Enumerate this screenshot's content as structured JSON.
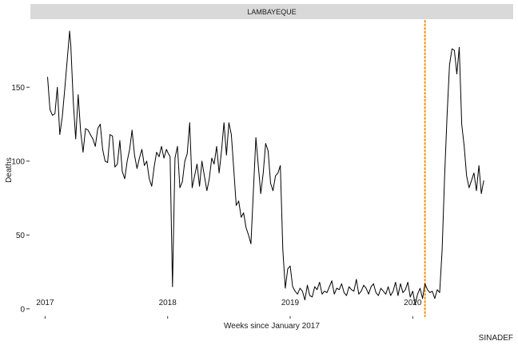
{
  "chart_data": {
    "type": "line",
    "facet_title": "LAMBAYEQUE",
    "xlabel": "Weeks since January 2017",
    "ylabel": "Deaths",
    "caption": "SINADEF",
    "x_ticks": [
      {
        "label": "2017",
        "year": 2017.0
      },
      {
        "label": "2018",
        "year": 2018.0
      },
      {
        "label": "2019",
        "year": 2019.0
      },
      {
        "label": "2020",
        "year": 2020.0
      }
    ],
    "y_ticks": [
      0,
      50,
      100,
      150
    ],
    "ylim": [
      -5,
      195
    ],
    "xlim": [
      2016.88,
      2020.82
    ],
    "grid": false,
    "reference_line": {
      "year": 2020.1,
      "color": "#ff8c00",
      "style": "dotted"
    },
    "line_color": "#000000",
    "series": [
      {
        "values": [
          [
            2017.02,
            157
          ],
          [
            2017.04,
            135
          ],
          [
            2017.06,
            131
          ],
          [
            2017.08,
            132
          ],
          [
            2017.1,
            150
          ],
          [
            2017.12,
            118
          ],
          [
            2017.14,
            130
          ],
          [
            2017.16,
            148
          ],
          [
            2017.18,
            168
          ],
          [
            2017.2,
            188
          ],
          [
            2017.21,
            178
          ],
          [
            2017.23,
            140
          ],
          [
            2017.25,
            115
          ],
          [
            2017.27,
            145
          ],
          [
            2017.29,
            120
          ],
          [
            2017.31,
            106
          ],
          [
            2017.33,
            122
          ],
          [
            2017.35,
            121
          ],
          [
            2017.37,
            118
          ],
          [
            2017.39,
            115
          ],
          [
            2017.41,
            110
          ],
          [
            2017.43,
            122
          ],
          [
            2017.45,
            125
          ],
          [
            2017.47,
            108
          ],
          [
            2017.49,
            100
          ],
          [
            2017.51,
            99
          ],
          [
            2017.53,
            118
          ],
          [
            2017.55,
            117
          ],
          [
            2017.57,
            96
          ],
          [
            2017.59,
            98
          ],
          [
            2017.61,
            114
          ],
          [
            2017.63,
            93
          ],
          [
            2017.65,
            88
          ],
          [
            2017.67,
            100
          ],
          [
            2017.69,
            108
          ],
          [
            2017.71,
            121
          ],
          [
            2017.73,
            104
          ],
          [
            2017.75,
            95
          ],
          [
            2017.77,
            102
          ],
          [
            2017.79,
            108
          ],
          [
            2017.81,
            97
          ],
          [
            2017.83,
            100
          ],
          [
            2017.85,
            88
          ],
          [
            2017.87,
            83
          ],
          [
            2017.89,
            96
          ],
          [
            2017.91,
            106
          ],
          [
            2017.93,
            103
          ],
          [
            2017.95,
            110
          ],
          [
            2017.97,
            102
          ],
          [
            2017.99,
            108
          ],
          [
            2018.0,
            106
          ],
          [
            2018.02,
            103
          ],
          [
            2018.04,
            15
          ],
          [
            2018.06,
            102
          ],
          [
            2018.08,
            110
          ],
          [
            2018.1,
            82
          ],
          [
            2018.12,
            86
          ],
          [
            2018.14,
            100
          ],
          [
            2018.16,
            105
          ],
          [
            2018.18,
            126
          ],
          [
            2018.2,
            82
          ],
          [
            2018.22,
            90
          ],
          [
            2018.24,
            98
          ],
          [
            2018.26,
            83
          ],
          [
            2018.28,
            100
          ],
          [
            2018.3,
            90
          ],
          [
            2018.32,
            80
          ],
          [
            2018.34,
            88
          ],
          [
            2018.36,
            102
          ],
          [
            2018.38,
            98
          ],
          [
            2018.4,
            110
          ],
          [
            2018.42,
            92
          ],
          [
            2018.44,
            107
          ],
          [
            2018.46,
            126
          ],
          [
            2018.48,
            104
          ],
          [
            2018.5,
            126
          ],
          [
            2018.52,
            118
          ],
          [
            2018.54,
            94
          ],
          [
            2018.56,
            70
          ],
          [
            2018.58,
            73
          ],
          [
            2018.6,
            62
          ],
          [
            2018.62,
            65
          ],
          [
            2018.64,
            55
          ],
          [
            2018.66,
            50
          ],
          [
            2018.68,
            44
          ],
          [
            2018.7,
            80
          ],
          [
            2018.72,
            116
          ],
          [
            2018.74,
            97
          ],
          [
            2018.76,
            78
          ],
          [
            2018.78,
            92
          ],
          [
            2018.8,
            112
          ],
          [
            2018.82,
            107
          ],
          [
            2018.84,
            85
          ],
          [
            2018.86,
            80
          ],
          [
            2018.88,
            90
          ],
          [
            2018.9,
            92
          ],
          [
            2018.92,
            97
          ],
          [
            2018.94,
            40
          ],
          [
            2018.96,
            14
          ],
          [
            2018.98,
            27
          ],
          [
            2019.0,
            29
          ],
          [
            2019.02,
            15
          ],
          [
            2019.04,
            12
          ],
          [
            2019.06,
            10
          ],
          [
            2019.08,
            14
          ],
          [
            2019.1,
            12
          ],
          [
            2019.12,
            6
          ],
          [
            2019.14,
            16
          ],
          [
            2019.16,
            9
          ],
          [
            2019.18,
            8
          ],
          [
            2019.2,
            15
          ],
          [
            2019.22,
            13
          ],
          [
            2019.24,
            18
          ],
          [
            2019.26,
            10
          ],
          [
            2019.28,
            12
          ],
          [
            2019.3,
            11
          ],
          [
            2019.32,
            15
          ],
          [
            2019.34,
            19
          ],
          [
            2019.36,
            10
          ],
          [
            2019.38,
            14
          ],
          [
            2019.4,
            13
          ],
          [
            2019.42,
            17
          ],
          [
            2019.44,
            11
          ],
          [
            2019.46,
            9
          ],
          [
            2019.48,
            15
          ],
          [
            2019.5,
            13
          ],
          [
            2019.52,
            12
          ],
          [
            2019.54,
            20
          ],
          [
            2019.56,
            10
          ],
          [
            2019.58,
            12
          ],
          [
            2019.6,
            16
          ],
          [
            2019.62,
            14
          ],
          [
            2019.64,
            10
          ],
          [
            2019.66,
            15
          ],
          [
            2019.68,
            17
          ],
          [
            2019.7,
            11
          ],
          [
            2019.72,
            9
          ],
          [
            2019.74,
            14
          ],
          [
            2019.76,
            12
          ],
          [
            2019.78,
            10
          ],
          [
            2019.8,
            15
          ],
          [
            2019.82,
            9
          ],
          [
            2019.84,
            12
          ],
          [
            2019.86,
            18
          ],
          [
            2019.88,
            9
          ],
          [
            2019.9,
            17
          ],
          [
            2019.92,
            11
          ],
          [
            2019.94,
            13
          ],
          [
            2019.96,
            18
          ],
          [
            2019.98,
            8
          ],
          [
            2020.0,
            12
          ],
          [
            2020.02,
            3
          ],
          [
            2020.04,
            10
          ],
          [
            2020.06,
            14
          ],
          [
            2020.08,
            7
          ],
          [
            2020.1,
            17
          ],
          [
            2020.12,
            13
          ],
          [
            2020.14,
            11
          ],
          [
            2020.16,
            12
          ],
          [
            2020.18,
            7
          ],
          [
            2020.2,
            13
          ],
          [
            2020.22,
            11
          ],
          [
            2020.24,
            40
          ],
          [
            2020.26,
            90
          ],
          [
            2020.28,
            130
          ],
          [
            2020.3,
            165
          ],
          [
            2020.32,
            176
          ],
          [
            2020.34,
            175
          ],
          [
            2020.36,
            159
          ],
          [
            2020.38,
            177
          ],
          [
            2020.4,
            125
          ],
          [
            2020.42,
            110
          ],
          [
            2020.44,
            90
          ],
          [
            2020.46,
            82
          ],
          [
            2020.48,
            87
          ],
          [
            2020.5,
            92
          ],
          [
            2020.52,
            80
          ],
          [
            2020.54,
            97
          ],
          [
            2020.56,
            78
          ],
          [
            2020.58,
            87
          ]
        ]
      }
    ]
  }
}
